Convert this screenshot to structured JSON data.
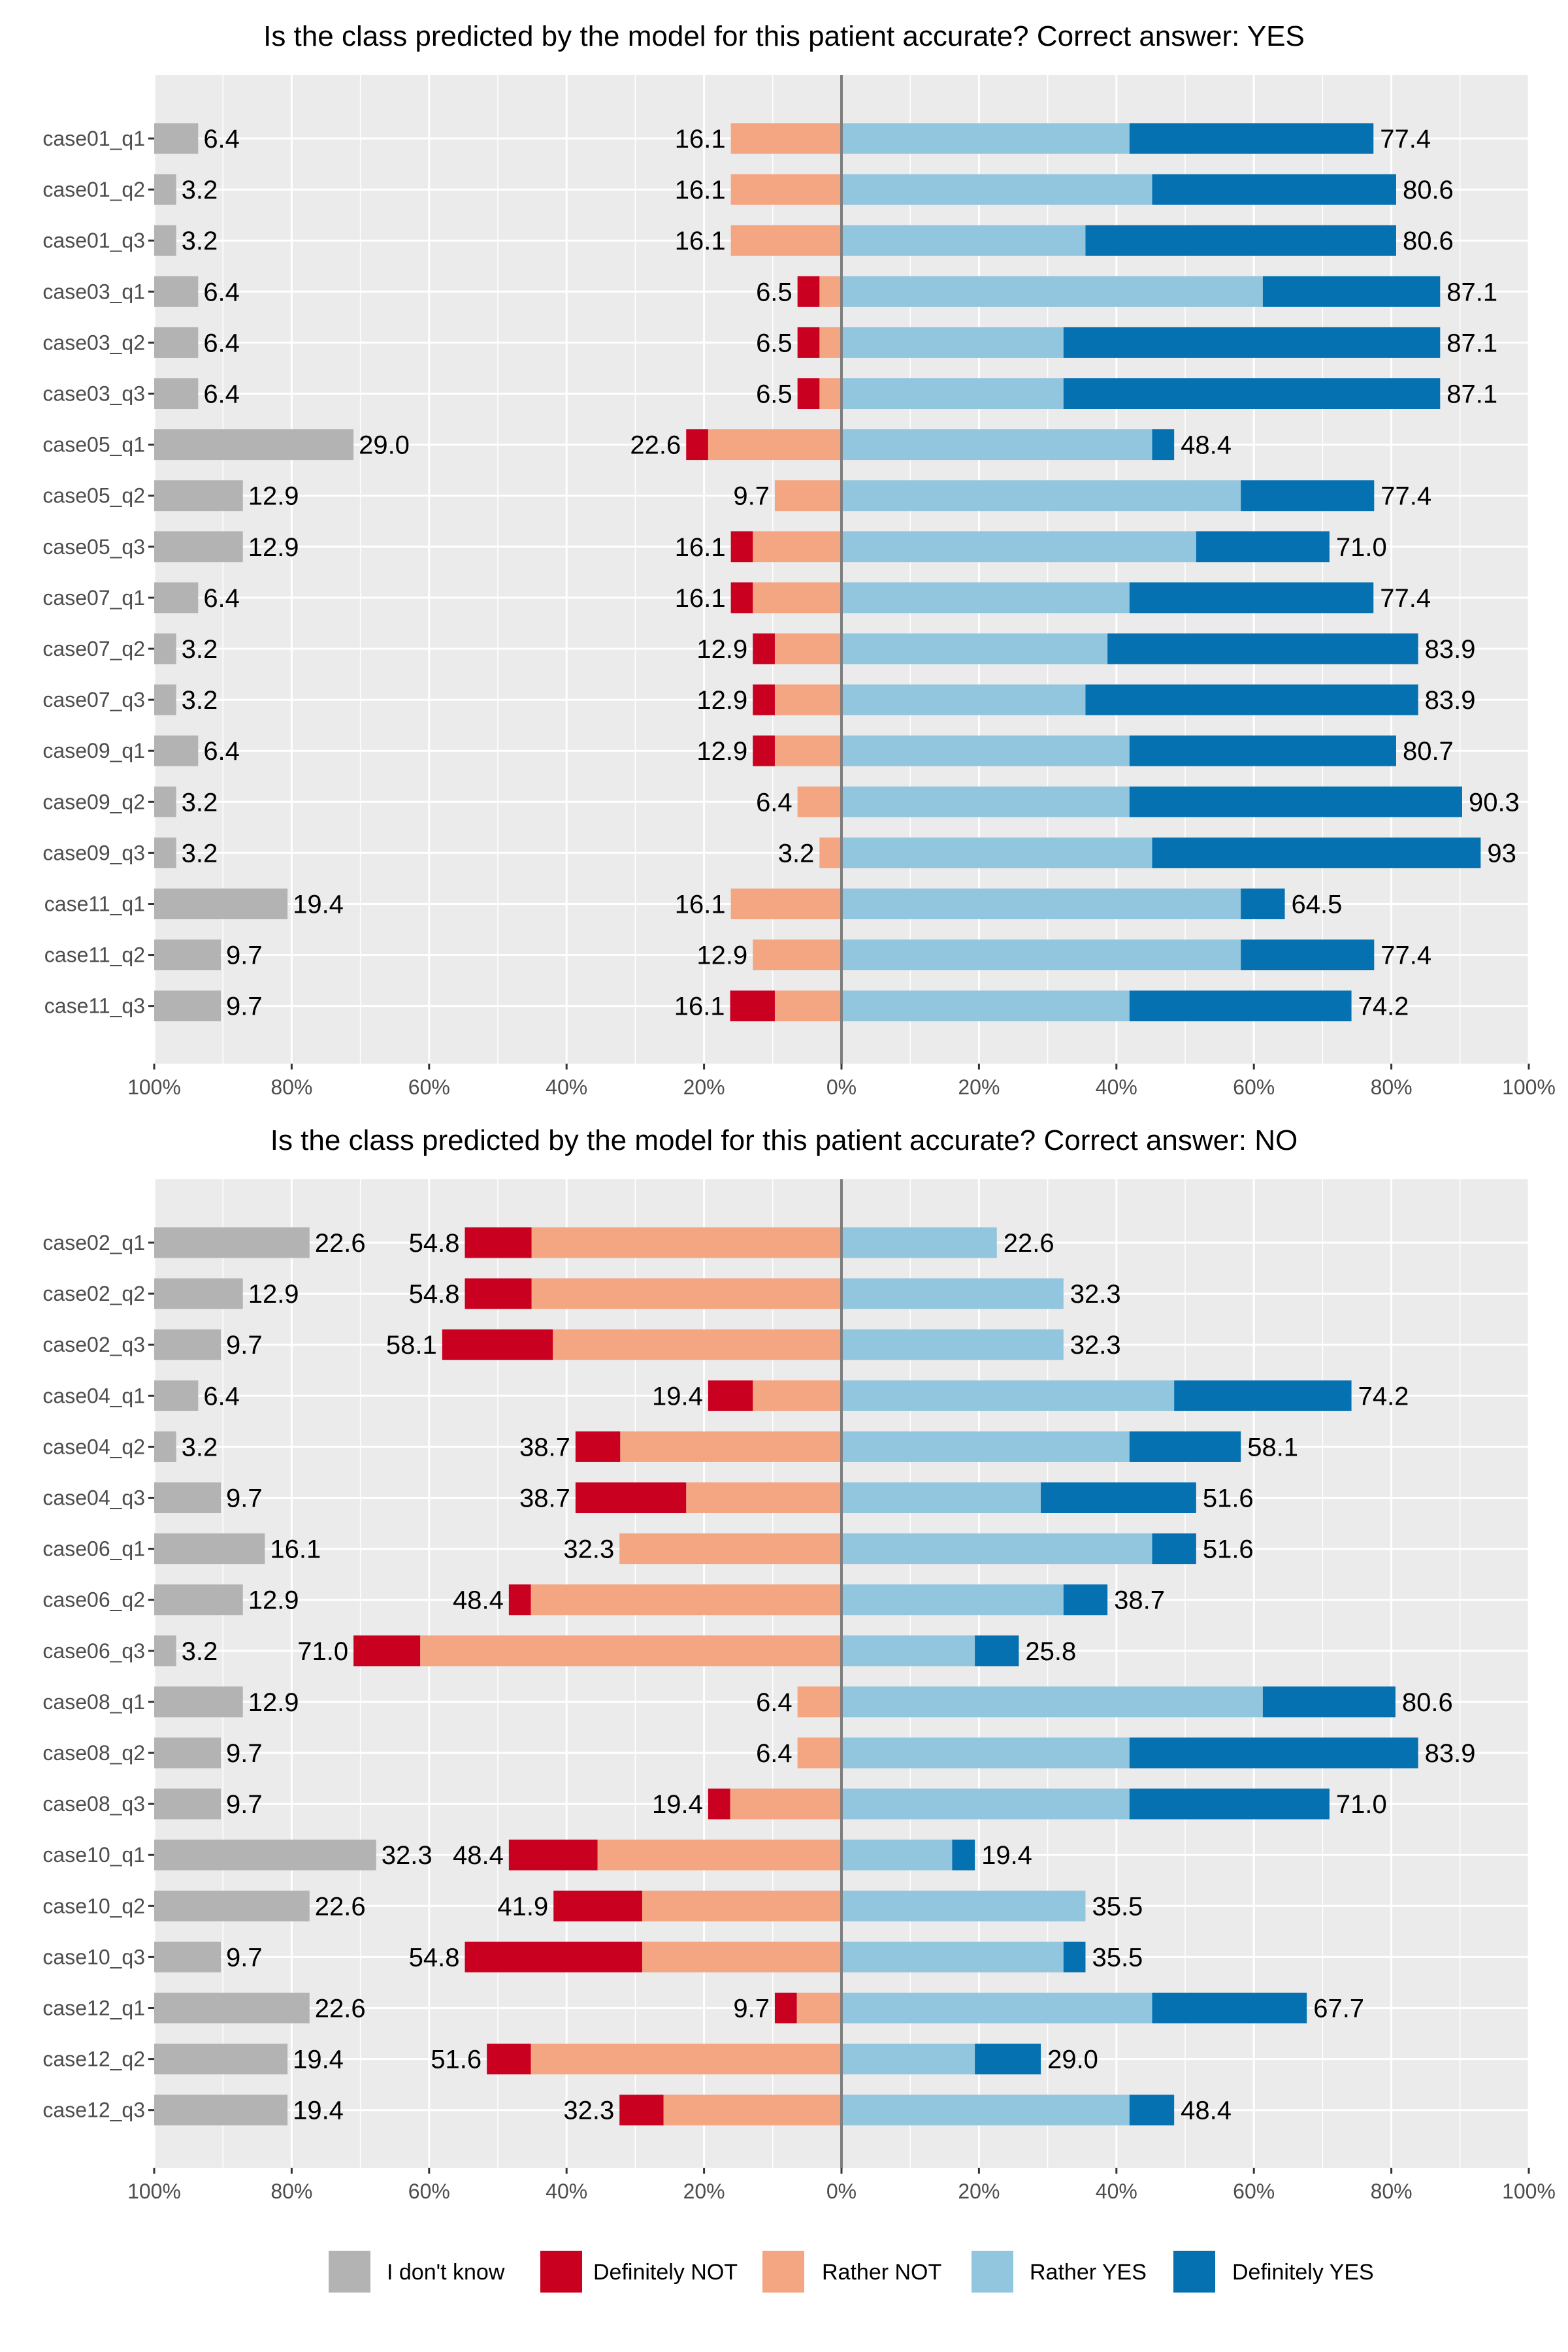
{
  "colors": {
    "idk": "#B3B3B3",
    "def_not": "#CA0020",
    "rather_not": "#F4A582",
    "rather_yes": "#92C5DE",
    "def_yes": "#0571B0",
    "panel_bg": "#EBEBEB",
    "grid": "#FFFFFF",
    "center_line": "#7F7F7F"
  },
  "legend": [
    {
      "label": "I don't know",
      "color_key": "idk"
    },
    {
      "label": "Definitely NOT",
      "color_key": "def_not"
    },
    {
      "label": "Rather NOT",
      "color_key": "rather_not"
    },
    {
      "label": "Rather YES",
      "color_key": "rather_yes"
    },
    {
      "label": "Definitely YES",
      "color_key": "def_yes"
    }
  ],
  "chart_data": [
    {
      "type": "bar",
      "subtype": "diverging-stacked-likert",
      "title": "Is the class predicted by the model for this patient accurate? Correct answer: YES",
      "x_tick_labels": [
        "100%",
        "80%",
        "60%",
        "40%",
        "20%",
        "0%",
        "20%",
        "40%",
        "60%",
        "80%",
        "100%"
      ],
      "xlim": [
        -100,
        100
      ],
      "categories": [
        "case01_q1",
        "case01_q2",
        "case01_q3",
        "case03_q1",
        "case03_q2",
        "case03_q3",
        "case05_q1",
        "case05_q2",
        "case05_q3",
        "case07_q1",
        "case07_q2",
        "case07_q3",
        "case09_q1",
        "case09_q2",
        "case09_q3",
        "case11_q1",
        "case11_q2",
        "case11_q3"
      ],
      "series": [
        {
          "name": "I don't know",
          "values": [
            6.4,
            3.2,
            3.2,
            6.4,
            6.4,
            6.4,
            29.0,
            12.9,
            12.9,
            6.4,
            3.2,
            3.2,
            6.4,
            3.2,
            3.2,
            19.4,
            9.7,
            9.7
          ]
        },
        {
          "name": "Definitely NOT",
          "values": [
            0,
            0,
            0,
            3.2,
            3.2,
            3.2,
            3.2,
            0,
            3.2,
            3.2,
            3.2,
            3.2,
            3.2,
            0,
            0,
            0,
            0,
            6.5
          ]
        },
        {
          "name": "Rather NOT",
          "values": [
            16.1,
            16.1,
            16.1,
            3.2,
            3.2,
            3.2,
            19.4,
            9.7,
            12.9,
            12.9,
            9.7,
            9.7,
            9.7,
            6.4,
            3.2,
            16.1,
            12.9,
            9.7
          ]
        },
        {
          "name": "Rather YES",
          "values": [
            41.9,
            45.2,
            35.5,
            61.3,
            32.3,
            32.3,
            45.2,
            58.1,
            51.6,
            41.9,
            38.7,
            35.5,
            41.9,
            41.9,
            45.2,
            58.1,
            58.1,
            41.9
          ]
        },
        {
          "name": "Definitely YES",
          "values": [
            35.5,
            35.5,
            45.2,
            25.8,
            54.8,
            54.8,
            3.2,
            19.4,
            19.4,
            35.5,
            45.2,
            48.4,
            38.8,
            48.4,
            47.8,
            6.4,
            19.4,
            32.3
          ]
        }
      ],
      "idk_labels": [
        "6.4",
        "3.2",
        "3.2",
        "6.4",
        "6.4",
        "6.4",
        "29.0",
        "12.9",
        "12.9",
        "6.4",
        "3.2",
        "3.2",
        "6.4",
        "3.2",
        "3.2",
        "19.4",
        "9.7",
        "9.7"
      ],
      "neg_labels": [
        "16.1",
        "16.1",
        "16.1",
        "6.5",
        "6.5",
        "6.5",
        "22.6",
        "9.7",
        "16.1",
        "16.1",
        "12.9",
        "12.9",
        "12.9",
        "6.4",
        "3.2",
        "16.1",
        "12.9",
        "16.1"
      ],
      "pos_labels": [
        "77.4",
        "80.6",
        "80.6",
        "87.1",
        "87.1",
        "87.1",
        "48.4",
        "77.4",
        "71.0",
        "77.4",
        "83.9",
        "83.9",
        "80.7",
        "90.3",
        "93",
        "64.5",
        "77.4",
        "74.2"
      ]
    },
    {
      "type": "bar",
      "subtype": "diverging-stacked-likert",
      "title": "Is the class predicted by the model for this patient accurate? Correct answer: NO",
      "x_tick_labels": [
        "100%",
        "80%",
        "60%",
        "40%",
        "20%",
        "0%",
        "20%",
        "40%",
        "60%",
        "80%",
        "100%"
      ],
      "xlim": [
        -100,
        100
      ],
      "categories": [
        "case02_q1",
        "case02_q2",
        "case02_q3",
        "case04_q1",
        "case04_q2",
        "case04_q3",
        "case06_q1",
        "case06_q2",
        "case06_q3",
        "case08_q1",
        "case08_q2",
        "case08_q3",
        "case10_q1",
        "case10_q2",
        "case10_q3",
        "case12_q1",
        "case12_q2",
        "case12_q3"
      ],
      "series": [
        {
          "name": "I don't know",
          "values": [
            22.6,
            12.9,
            9.7,
            6.4,
            3.2,
            9.7,
            16.1,
            12.9,
            3.2,
            12.9,
            9.7,
            9.7,
            32.3,
            22.6,
            9.7,
            22.6,
            19.4,
            19.4
          ]
        },
        {
          "name": "Definitely NOT",
          "values": [
            9.7,
            9.7,
            16.1,
            6.5,
            6.5,
            16.1,
            0,
            3.2,
            9.7,
            0,
            0,
            3.2,
            12.9,
            12.9,
            25.8,
            3.2,
            6.4,
            6.4
          ]
        },
        {
          "name": "Rather NOT",
          "values": [
            45.1,
            45.1,
            42.0,
            12.9,
            32.2,
            22.6,
            32.3,
            45.2,
            61.3,
            6.4,
            6.4,
            16.2,
            35.5,
            29.0,
            29.0,
            6.5,
            45.2,
            25.9
          ]
        },
        {
          "name": "Rather YES",
          "values": [
            22.6,
            32.3,
            32.3,
            48.4,
            41.9,
            29.0,
            45.2,
            32.3,
            19.4,
            61.3,
            41.9,
            41.9,
            16.1,
            35.5,
            32.3,
            45.2,
            19.4,
            41.9
          ]
        },
        {
          "name": "Definitely YES",
          "values": [
            0,
            0,
            0,
            25.8,
            16.2,
            22.6,
            6.4,
            6.4,
            6.4,
            19.3,
            42.0,
            29.1,
            3.3,
            0,
            3.2,
            22.5,
            9.6,
            6.5
          ]
        }
      ],
      "idk_labels": [
        "22.6",
        "12.9",
        "9.7",
        "6.4",
        "3.2",
        "9.7",
        "16.1",
        "12.9",
        "3.2",
        "12.9",
        "9.7",
        "9.7",
        "32.3",
        "22.6",
        "9.7",
        "22.6",
        "19.4",
        "19.4"
      ],
      "neg_labels": [
        "54.8",
        "54.8",
        "58.1",
        "19.4",
        "38.7",
        "38.7",
        "32.3",
        "48.4",
        "71.0",
        "6.4",
        "6.4",
        "19.4",
        "48.4",
        "41.9",
        "54.8",
        "9.7",
        "51.6",
        "32.3"
      ],
      "pos_labels": [
        "22.6",
        "32.3",
        "32.3",
        "74.2",
        "58.1",
        "51.6",
        "51.6",
        "38.7",
        "25.8",
        "80.6",
        "83.9",
        "71.0",
        "19.4",
        "35.5",
        "35.5",
        "67.7",
        "29.0",
        "48.4"
      ]
    }
  ]
}
